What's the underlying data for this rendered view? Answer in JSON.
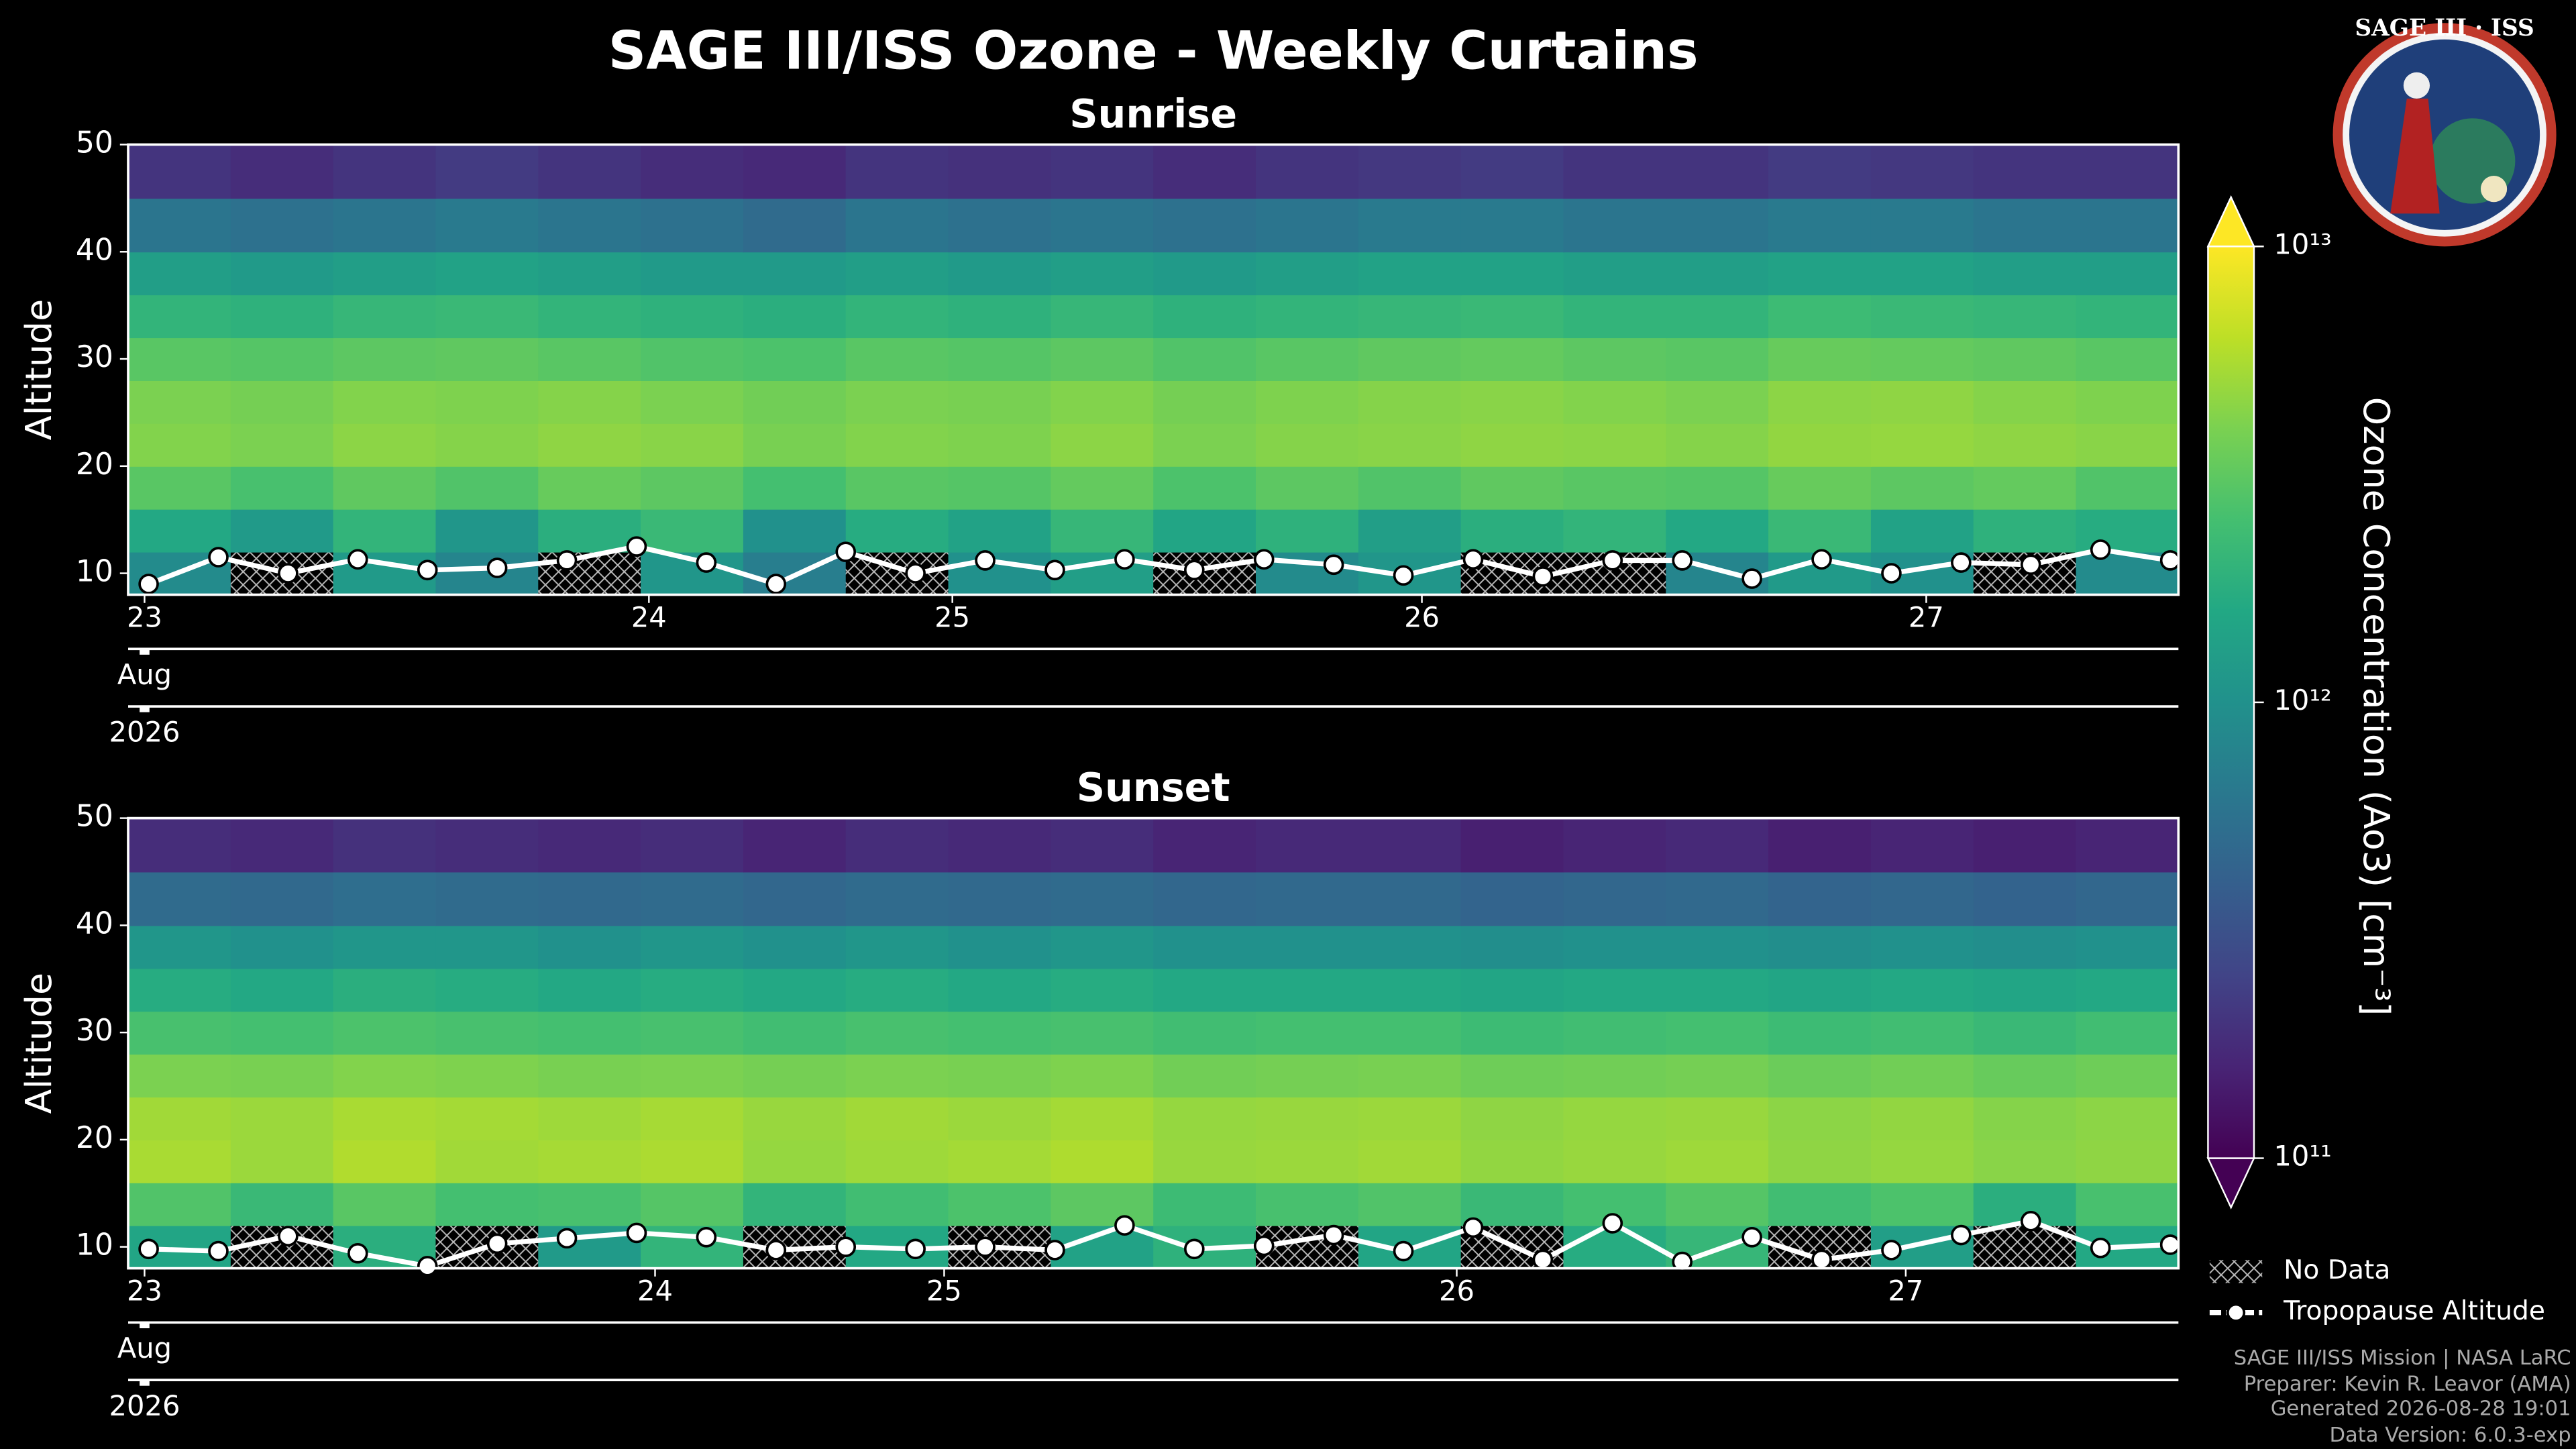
{
  "title": "SAGE III/ISS Ozone - Weekly Curtains",
  "logo": {
    "title": "SAGE III · ISS"
  },
  "colorbar": {
    "label": "Ozone Concentration (Ao3) [cm⁻³]",
    "colormap": "viridis",
    "log": true,
    "extend": "both",
    "lim": [
      100000000000.0,
      10000000000000.0
    ],
    "ticks": [
      {
        "value": 100000000000.0,
        "label": "10¹¹"
      },
      {
        "value": 1000000000000.0,
        "label": "10¹²"
      },
      {
        "value": 10000000000000.0,
        "label": "10¹³"
      }
    ]
  },
  "legend": [
    "No Data",
    "Tropopause Altitude"
  ],
  "footer": [
    "SAGE III/ISS Mission | NASA LaRC",
    "Preparer: Kevin R. Leavor (AMA)",
    "Generated 2026-08-28 19:01",
    "Data Version: 6.0.3-exp"
  ],
  "chart_data": [
    {
      "type": "heatmap",
      "title": "Sunrise",
      "y_label": "Altitude",
      "xlim": [
        0,
        100
      ],
      "ylim": [
        8,
        50
      ],
      "yticks": [
        10,
        20,
        30,
        40,
        50
      ],
      "xticks": [
        {
          "value": 0.8,
          "label": "23"
        },
        {
          "value": 25.4,
          "label": "24"
        },
        {
          "value": 40.2,
          "label": "25"
        },
        {
          "value": 63.1,
          "label": "26"
        },
        {
          "value": 87.7,
          "label": "27"
        }
      ],
      "x_sublabels": [
        "Aug",
        "2026"
      ],
      "x_bins": [
        0,
        5,
        10,
        15,
        20,
        25,
        30,
        35,
        40,
        45,
        50,
        55,
        60,
        65,
        70,
        75,
        80,
        85,
        90,
        95,
        100
      ],
      "y_bins": [
        8,
        12,
        16,
        20,
        24,
        28,
        32,
        36,
        40,
        45,
        50
      ],
      "z": [
        [
          900000000000.0,
          null,
          1200000000000.0,
          800000000000.0,
          null,
          1100000000000.0,
          700000000000.0,
          null,
          1000000000000.0,
          1300000000000.0,
          null,
          900000000000.0,
          1100000000000.0,
          null,
          null,
          800000000000.0,
          1200000000000.0,
          1000000000000.0,
          null,
          900000000000.0
        ],
        [
          1600000000000.0,
          1200000000000.0,
          2000000000000.0,
          1100000000000.0,
          1800000000000.0,
          2200000000000.0,
          1000000000000.0,
          1700000000000.0,
          1400000000000.0,
          2100000000000.0,
          1500000000000.0,
          1900000000000.0,
          1300000000000.0,
          1800000000000.0,
          2000000000000.0,
          1600000000000.0,
          2200000000000.0,
          1400000000000.0,
          1900000000000.0,
          1700000000000.0
        ],
        [
          3000000000000.0,
          2600000000000.0,
          3200000000000.0,
          2800000000000.0,
          3400000000000.0,
          3100000000000.0,
          2500000000000.0,
          3000000000000.0,
          2900000000000.0,
          3300000000000.0,
          2700000000000.0,
          3100000000000.0,
          2800000000000.0,
          3200000000000.0,
          3000000000000.0,
          2900000000000.0,
          3400000000000.0,
          3100000000000.0,
          3300000000000.0,
          2800000000000.0
        ],
        [
          4200000000000.0,
          4000000000000.0,
          4500000000000.0,
          4300000000000.0,
          4600000000000.0,
          4400000000000.0,
          3900000000000.0,
          4200000000000.0,
          4100000000000.0,
          4500000000000.0,
          4000000000000.0,
          4300000000000.0,
          4400000000000.0,
          4600000000000.0,
          4500000000000.0,
          4300000000000.0,
          4700000000000.0,
          4800000000000.0,
          4600000000000.0,
          4400000000000.0
        ],
        [
          4000000000000.0,
          3800000000000.0,
          4200000000000.0,
          4100000000000.0,
          4300000000000.0,
          4000000000000.0,
          3700000000000.0,
          4000000000000.0,
          3900000000000.0,
          4200000000000.0,
          3800000000000.0,
          4100000000000.0,
          4300000000000.0,
          4400000000000.0,
          4200000000000.0,
          4000000000000.0,
          4500000000000.0,
          4600000000000.0,
          4300000000000.0,
          4100000000000.0
        ],
        [
          3000000000000.0,
          2900000000000.0,
          3100000000000.0,
          3200000000000.0,
          3000000000000.0,
          2800000000000.0,
          2700000000000.0,
          3000000000000.0,
          2900000000000.0,
          3100000000000.0,
          2800000000000.0,
          3000000000000.0,
          3200000000000.0,
          3300000000000.0,
          3100000000000.0,
          3000000000000.0,
          3400000000000.0,
          3300000000000.0,
          3200000000000.0,
          3000000000000.0
        ],
        [
          2000000000000.0,
          1900000000000.0,
          2100000000000.0,
          2200000000000.0,
          2000000000000.0,
          1900000000000.0,
          1800000000000.0,
          2000000000000.0,
          1900000000000.0,
          2100000000000.0,
          1900000000000.0,
          2000000000000.0,
          2100000000000.0,
          2200000000000.0,
          2000000000000.0,
          2000000000000.0,
          2300000000000.0,
          2200000000000.0,
          2100000000000.0,
          2000000000000.0
        ],
        [
          1300000000000.0,
          1200000000000.0,
          1300000000000.0,
          1400000000000.0,
          1300000000000.0,
          1200000000000.0,
          1200000000000.0,
          1300000000000.0,
          1200000000000.0,
          1300000000000.0,
          1200000000000.0,
          1300000000000.0,
          1400000000000.0,
          1400000000000.0,
          1300000000000.0,
          1300000000000.0,
          1400000000000.0,
          1400000000000.0,
          1300000000000.0,
          1300000000000.0
        ],
        [
          600000000000.0,
          550000000000.0,
          600000000000.0,
          650000000000.0,
          600000000000.0,
          550000000000.0,
          500000000000.0,
          600000000000.0,
          550000000000.0,
          600000000000.0,
          550000000000.0,
          600000000000.0,
          650000000000.0,
          650000000000.0,
          600000000000.0,
          600000000000.0,
          650000000000.0,
          650000000000.0,
          600000000000.0,
          600000000000.0
        ],
        [
          200000000000.0,
          180000000000.0,
          200000000000.0,
          220000000000.0,
          200000000000.0,
          180000000000.0,
          170000000000.0,
          200000000000.0,
          190000000000.0,
          200000000000.0,
          180000000000.0,
          200000000000.0,
          210000000000.0,
          220000000000.0,
          200000000000.0,
          200000000000.0,
          220000000000.0,
          210000000000.0,
          200000000000.0,
          200000000000.0
        ]
      ],
      "tropopause": {
        "x": [
          1,
          4.4,
          7.8,
          11.2,
          14.6,
          18,
          21.4,
          24.8,
          28.2,
          31.6,
          35,
          38.4,
          41.8,
          45.2,
          48.6,
          52,
          55.4,
          58.8,
          62.2,
          65.6,
          69,
          72.4,
          75.8,
          79.2,
          82.6,
          86,
          89.4,
          92.8,
          96.2,
          99.6
        ],
        "values": [
          9,
          11.5,
          10,
          11.3,
          10.3,
          10.5,
          11.2,
          12.5,
          11,
          9,
          12,
          10,
          11.2,
          10.3,
          11.3,
          10.3,
          11.3,
          10.8,
          9.8,
          11.3,
          9.7,
          11.2,
          11.2,
          9.5,
          11.3,
          10,
          11,
          10.8,
          12.2,
          11.2
        ]
      }
    },
    {
      "type": "heatmap",
      "title": "Sunset",
      "y_label": "Altitude",
      "xlim": [
        0,
        100
      ],
      "ylim": [
        8,
        50
      ],
      "yticks": [
        10,
        20,
        30,
        40,
        50
      ],
      "xticks": [
        {
          "value": 0.8,
          "label": "23"
        },
        {
          "value": 25.7,
          "label": "24"
        },
        {
          "value": 39.8,
          "label": "25"
        },
        {
          "value": 64.8,
          "label": "26"
        },
        {
          "value": 86.7,
          "label": "27"
        }
      ],
      "x_sublabels": [
        "Aug",
        "2026"
      ],
      "x_bins": [
        0,
        5,
        10,
        15,
        20,
        25,
        30,
        35,
        40,
        45,
        50,
        55,
        60,
        65,
        70,
        75,
        80,
        85,
        90,
        95,
        100
      ],
      "y_bins": [
        8,
        12,
        16,
        20,
        24,
        28,
        32,
        36,
        40,
        45,
        50
      ],
      "z": [
        [
          1500000000000.0,
          null,
          1800000000000.0,
          null,
          1200000000000.0,
          2000000000000.0,
          null,
          1600000000000.0,
          null,
          1400000000000.0,
          1900000000000.0,
          null,
          1500000000000.0,
          null,
          1700000000000.0,
          2100000000000.0,
          null,
          1300000000000.0,
          null,
          1600000000000.0
        ],
        [
          2800000000000.0,
          2200000000000.0,
          3000000000000.0,
          2500000000000.0,
          2600000000000.0,
          2900000000000.0,
          2000000000000.0,
          2400000000000.0,
          2700000000000.0,
          3100000000000.0,
          2300000000000.0,
          2600000000000.0,
          2800000000000.0,
          2200000000000.0,
          2500000000000.0,
          2900000000000.0,
          2400000000000.0,
          2700000000000.0,
          1800000000000.0,
          2600000000000.0
        ],
        [
          5500000000000.0,
          5000000000000.0,
          5800000000000.0,
          5200000000000.0,
          5400000000000.0,
          5600000000000.0,
          4800000000000.0,
          5100000000000.0,
          5300000000000.0,
          5700000000000.0,
          4900000000000.0,
          5000000000000.0,
          5200000000000.0,
          4700000000000.0,
          4900000000000.0,
          5100000000000.0,
          4600000000000.0,
          4800000000000.0,
          4400000000000.0,
          4600000000000.0
        ],
        [
          5200000000000.0,
          5000000000000.0,
          5500000000000.0,
          5300000000000.0,
          5100000000000.0,
          5400000000000.0,
          4900000000000.0,
          5200000000000.0,
          5000000000000.0,
          5300000000000.0,
          4800000000000.0,
          4900000000000.0,
          5000000000000.0,
          4600000000000.0,
          4800000000000.0,
          4900000000000.0,
          4500000000000.0,
          4700000000000.0,
          4300000000000.0,
          4500000000000.0
        ],
        [
          4000000000000.0,
          3900000000000.0,
          4200000000000.0,
          4100000000000.0,
          3900000000000.0,
          4000000000000.0,
          3800000000000.0,
          4000000000000.0,
          3900000000000.0,
          4100000000000.0,
          3700000000000.0,
          3800000000000.0,
          3900000000000.0,
          3600000000000.0,
          3700000000000.0,
          3800000000000.0,
          3500000000000.0,
          3700000000000.0,
          3400000000000.0,
          3600000000000.0
        ],
        [
          2600000000000.0,
          2500000000000.0,
          2700000000000.0,
          2600000000000.0,
          2500000000000.0,
          2600000000000.0,
          2400000000000.0,
          2600000000000.0,
          2500000000000.0,
          2600000000000.0,
          2400000000000.0,
          2500000000000.0,
          2500000000000.0,
          2300000000000.0,
          2400000000000.0,
          2500000000000.0,
          2300000000000.0,
          2400000000000.0,
          2200000000000.0,
          2400000000000.0
        ],
        [
          1700000000000.0,
          1600000000000.0,
          1800000000000.0,
          1700000000000.0,
          1600000000000.0,
          1700000000000.0,
          1600000000000.0,
          1700000000000.0,
          1600000000000.0,
          1700000000000.0,
          1600000000000.0,
          1600000000000.0,
          1600000000000.0,
          1500000000000.0,
          1600000000000.0,
          1600000000000.0,
          1500000000000.0,
          1600000000000.0,
          1500000000000.0,
          1600000000000.0
        ],
        [
          1100000000000.0,
          1000000000000.0,
          1100000000000.0,
          1100000000000.0,
          1000000000000.0,
          1100000000000.0,
          1000000000000.0,
          1100000000000.0,
          1000000000000.0,
          1100000000000.0,
          1000000000000.0,
          1000000000000.0,
          1000000000000.0,
          950000000000.0,
          1000000000000.0,
          1000000000000.0,
          950000000000.0,
          1000000000000.0,
          950000000000.0,
          1000000000000.0
        ],
        [
          500000000000.0,
          480000000000.0,
          520000000000.0,
          500000000000.0,
          480000000000.0,
          500000000000.0,
          460000000000.0,
          500000000000.0,
          480000000000.0,
          500000000000.0,
          460000000000.0,
          480000000000.0,
          480000000000.0,
          440000000000.0,
          460000000000.0,
          480000000000.0,
          440000000000.0,
          460000000000.0,
          430000000000.0,
          460000000000.0
        ],
        [
          180000000000.0,
          170000000000.0,
          190000000000.0,
          180000000000.0,
          170000000000.0,
          180000000000.0,
          160000000000.0,
          180000000000.0,
          170000000000.0,
          180000000000.0,
          160000000000.0,
          170000000000.0,
          170000000000.0,
          150000000000.0,
          160000000000.0,
          170000000000.0,
          150000000000.0,
          160000000000.0,
          150000000000.0,
          160000000000.0
        ]
      ],
      "tropopause": {
        "x": [
          1,
          4.4,
          7.8,
          11.2,
          14.6,
          18,
          21.4,
          24.8,
          28.2,
          31.6,
          35,
          38.4,
          41.8,
          45.2,
          48.6,
          52,
          55.4,
          58.8,
          62.2,
          65.6,
          69,
          72.4,
          75.8,
          79.2,
          82.6,
          86,
          89.4,
          92.8,
          96.2,
          99.6
        ],
        "values": [
          9.8,
          9.6,
          11,
          9.4,
          8.2,
          10.3,
          10.8,
          11.3,
          10.9,
          9.7,
          10,
          9.8,
          10,
          9.7,
          12,
          9.8,
          10.1,
          11.1,
          9.6,
          11.8,
          8.8,
          12.2,
          8.6,
          10.9,
          8.8,
          9.7,
          11.1,
          12.4,
          9.9,
          10.2
        ]
      }
    }
  ]
}
